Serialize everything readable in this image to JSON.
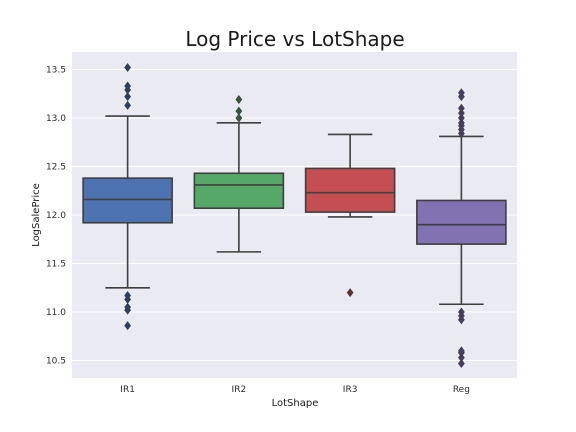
{
  "chart_data": {
    "type": "box",
    "title": "Log Price vs LotShape",
    "xlabel": "LotShape",
    "ylabel": "LogSalePrice",
    "ylim": [
      10.32,
      13.68
    ],
    "yticks": [
      "10.5",
      "11.0",
      "11.5",
      "12.0",
      "12.5",
      "13.0",
      "13.5"
    ],
    "grid": true,
    "background": "#eaeaf2",
    "gridColor": "#ffffff",
    "lineColor": "#3f3f3f",
    "categories": [
      "IR1",
      "IR2",
      "IR3",
      "Reg"
    ],
    "boxes": [
      {
        "category": "IR1",
        "color": "#4c72b0",
        "whisker_low": 11.25,
        "q1": 11.92,
        "median": 12.16,
        "q3": 12.38,
        "whisker_high": 13.02,
        "outliers": [
          10.86,
          11.02,
          11.05,
          11.13,
          11.17,
          13.13,
          13.22,
          13.29,
          13.33,
          13.52
        ]
      },
      {
        "category": "IR2",
        "color": "#55a868",
        "whisker_low": 11.62,
        "q1": 12.07,
        "median": 12.31,
        "q3": 12.43,
        "whisker_high": 12.95,
        "outliers": [
          13.0,
          13.07,
          13.19
        ]
      },
      {
        "category": "IR3",
        "color": "#c44e52",
        "whisker_low": 11.98,
        "q1": 12.03,
        "median": 12.23,
        "q3": 12.48,
        "whisker_high": 12.83,
        "outliers": [
          11.2
        ]
      },
      {
        "category": "Reg",
        "color": "#8172b2",
        "whisker_low": 11.08,
        "q1": 11.7,
        "median": 11.9,
        "q3": 12.15,
        "whisker_high": 12.81,
        "outliers": [
          10.47,
          10.53,
          10.58,
          10.6,
          10.92,
          10.96,
          11.0,
          12.84,
          12.88,
          12.92,
          12.95,
          13.0,
          13.05,
          13.1,
          13.22,
          13.26
        ]
      }
    ]
  }
}
